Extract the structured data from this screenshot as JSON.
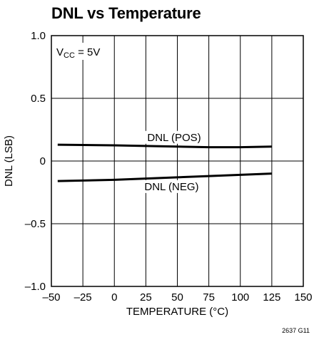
{
  "chart_data": {
    "type": "line",
    "title": "DNL vs Temperature",
    "xlabel": "TEMPERATURE (°C)",
    "ylabel": "DNL (LSB)",
    "xlim": [
      -50,
      150
    ],
    "ylim": [
      -1.0,
      1.0
    ],
    "x_ticks": [
      -50,
      -25,
      0,
      25,
      50,
      75,
      100,
      125,
      150
    ],
    "x_tick_labels": [
      "–50",
      "–25",
      "0",
      "25",
      "50",
      "75",
      "100",
      "125",
      "150"
    ],
    "y_ticks": [
      -1.0,
      -0.5,
      0,
      0.5,
      1.0
    ],
    "y_tick_labels": [
      "–1.0",
      "–0.5",
      "0",
      "0.5",
      "1.0"
    ],
    "grid": true,
    "annotations": {
      "condition": {
        "main": "V",
        "sub": "CC",
        "rest": " = 5V"
      }
    },
    "series": [
      {
        "name": "DNL (POS)",
        "x": [
          -45,
          0,
          25,
          50,
          75,
          100,
          125
        ],
        "y": [
          0.13,
          0.125,
          0.12,
          0.115,
          0.11,
          0.11,
          0.115
        ]
      },
      {
        "name": "DNL (NEG)",
        "x": [
          -45,
          0,
          25,
          50,
          75,
          100,
          125
        ],
        "y": [
          -0.16,
          -0.15,
          -0.14,
          -0.13,
          -0.12,
          -0.11,
          -0.1
        ]
      }
    ]
  },
  "figure_id": "2637 G11"
}
